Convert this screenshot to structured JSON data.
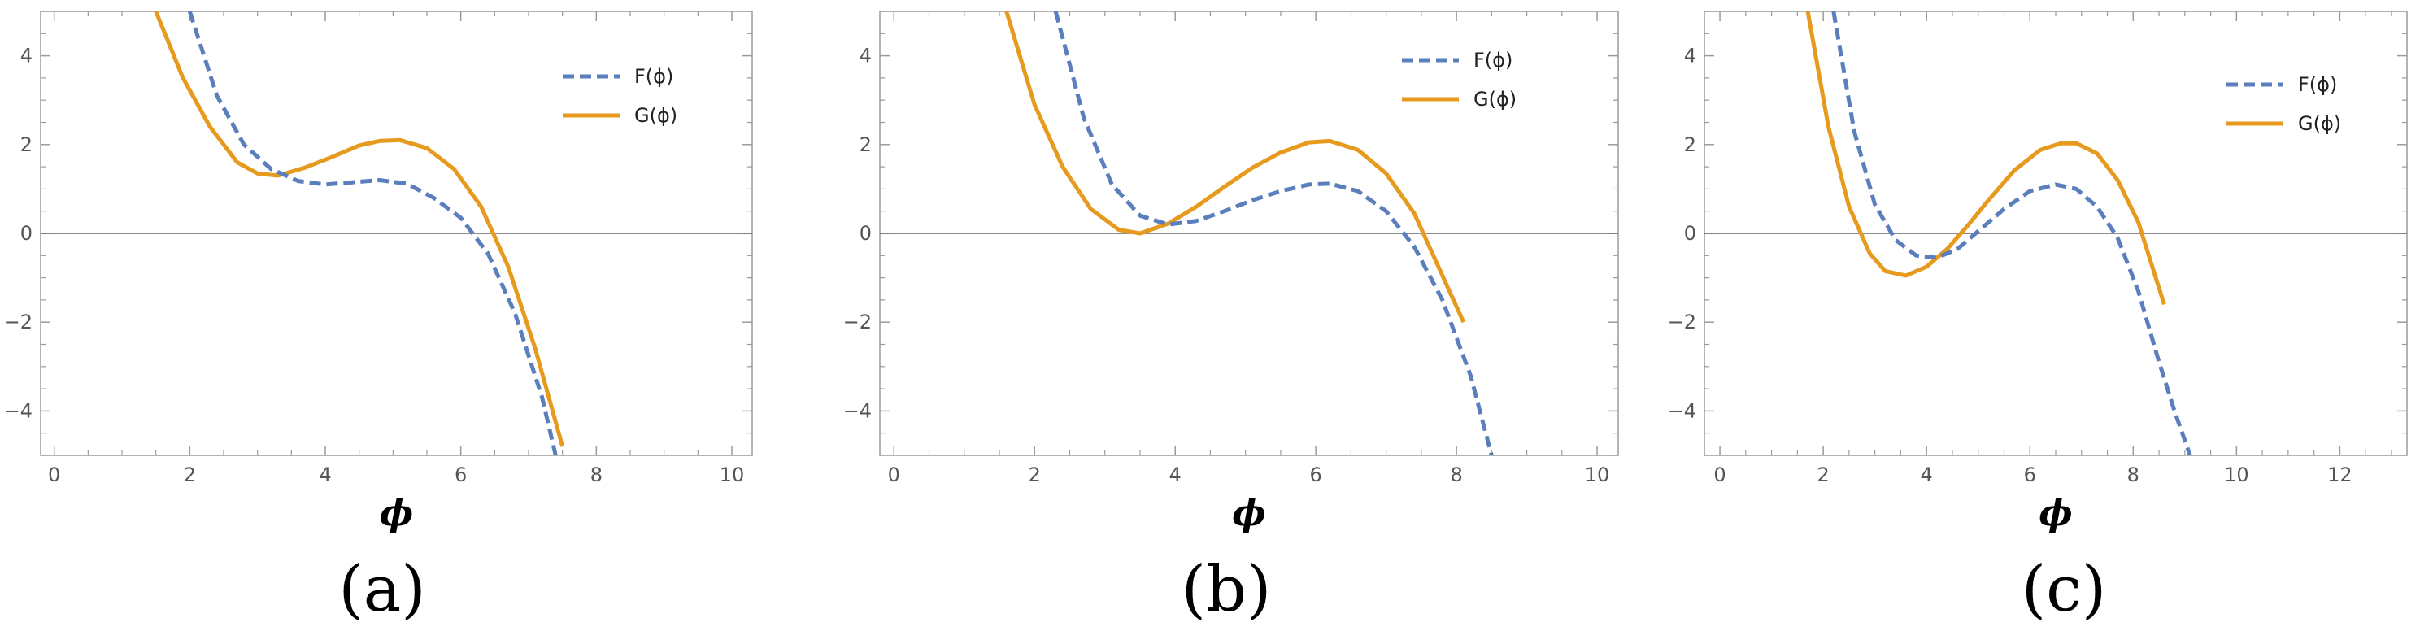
{
  "colors": {
    "F": "#5b7fbd",
    "G": "#e69a1e",
    "frame": "#9a9a9a",
    "axis": "#666666"
  },
  "chart_data": [
    {
      "type": "line",
      "caption": "(a)",
      "xlabel": "ϕ",
      "xlim": [
        -0.2,
        10.3
      ],
      "ylim": [
        -5,
        5
      ],
      "xticks": [
        "0",
        "2",
        "4",
        "6",
        "8",
        "10"
      ],
      "yticks": [
        "-4",
        "-2",
        "0",
        "2",
        "4"
      ],
      "legend": {
        "placement": "top-right"
      },
      "series": [
        {
          "name": "F(ϕ)",
          "style": "dashed",
          "x": [
            2.0,
            2.4,
            2.8,
            3.2,
            3.6,
            4.0,
            4.4,
            4.8,
            5.2,
            5.6,
            6.0,
            6.4,
            6.8,
            7.2,
            7.4
          ],
          "y": [
            5.0,
            3.1,
            2.0,
            1.45,
            1.18,
            1.1,
            1.15,
            1.2,
            1.12,
            0.8,
            0.35,
            -0.45,
            -1.8,
            -3.7,
            -5.0
          ]
        },
        {
          "name": "G(ϕ)",
          "style": "solid",
          "x": [
            1.5,
            1.9,
            2.3,
            2.7,
            3.0,
            3.3,
            3.7,
            4.1,
            4.5,
            4.8,
            5.1,
            5.5,
            5.9,
            6.3,
            6.7,
            7.1,
            7.5
          ],
          "y": [
            5.0,
            3.5,
            2.4,
            1.6,
            1.35,
            1.3,
            1.48,
            1.72,
            1.98,
            2.08,
            2.1,
            1.92,
            1.45,
            0.6,
            -0.75,
            -2.6,
            -4.8
          ]
        }
      ]
    },
    {
      "type": "line",
      "caption": "(b)",
      "xlabel": "ϕ",
      "xlim": [
        -0.2,
        10.3
      ],
      "ylim": [
        -5,
        5
      ],
      "xticks": [
        "0",
        "2",
        "4",
        "6",
        "8",
        "10"
      ],
      "yticks": [
        "-4",
        "-2",
        "0",
        "2",
        "4"
      ],
      "legend": {
        "placement": "top-right"
      },
      "series": [
        {
          "name": "F(ϕ)",
          "style": "dashed",
          "x": [
            2.3,
            2.7,
            3.1,
            3.5,
            3.9,
            4.3,
            4.7,
            5.1,
            5.5,
            5.9,
            6.2,
            6.6,
            7.0,
            7.4,
            7.8,
            8.2,
            8.5
          ],
          "y": [
            5.0,
            2.6,
            1.1,
            0.4,
            0.2,
            0.28,
            0.5,
            0.75,
            0.95,
            1.1,
            1.12,
            0.95,
            0.5,
            -0.3,
            -1.5,
            -3.2,
            -5.0
          ]
        },
        {
          "name": "G(ϕ)",
          "style": "solid",
          "x": [
            1.6,
            2.0,
            2.4,
            2.8,
            3.2,
            3.5,
            3.9,
            4.3,
            4.7,
            5.1,
            5.5,
            5.9,
            6.2,
            6.6,
            7.0,
            7.4,
            7.8,
            8.1
          ],
          "y": [
            5.0,
            2.9,
            1.5,
            0.55,
            0.08,
            0.0,
            0.22,
            0.6,
            1.05,
            1.48,
            1.82,
            2.05,
            2.08,
            1.88,
            1.35,
            0.45,
            -0.95,
            -2.0
          ]
        }
      ]
    },
    {
      "type": "line",
      "caption": "(c)",
      "xlabel": "ϕ",
      "xlim": [
        -0.3,
        13.3
      ],
      "ylim": [
        -5,
        5
      ],
      "xticks": [
        "0",
        "2",
        "4",
        "6",
        "8",
        "10",
        "12"
      ],
      "yticks": [
        "-4",
        "-2",
        "0",
        "2",
        "4"
      ],
      "legend": {
        "placement": "top-right"
      },
      "series": [
        {
          "name": "F(ϕ)",
          "style": "dashed",
          "x": [
            2.2,
            2.6,
            3.0,
            3.4,
            3.8,
            4.2,
            4.6,
            5.0,
            5.5,
            6.0,
            6.5,
            6.9,
            7.3,
            7.7,
            8.1,
            8.5,
            8.8,
            9.1
          ],
          "y": [
            5.0,
            2.3,
            0.65,
            -0.15,
            -0.5,
            -0.55,
            -0.35,
            0.05,
            0.55,
            0.95,
            1.1,
            1.0,
            0.6,
            -0.1,
            -1.3,
            -2.9,
            -4.0,
            -5.0
          ]
        },
        {
          "name": "G(ϕ)",
          "style": "solid",
          "x": [
            1.7,
            2.1,
            2.5,
            2.9,
            3.2,
            3.6,
            4.0,
            4.4,
            4.8,
            5.2,
            5.7,
            6.2,
            6.6,
            6.9,
            7.3,
            7.7,
            8.1,
            8.6
          ],
          "y": [
            5.0,
            2.4,
            0.6,
            -0.45,
            -0.85,
            -0.95,
            -0.75,
            -0.35,
            0.18,
            0.75,
            1.42,
            1.88,
            2.03,
            2.03,
            1.8,
            1.2,
            0.25,
            -1.6
          ]
        }
      ]
    }
  ]
}
